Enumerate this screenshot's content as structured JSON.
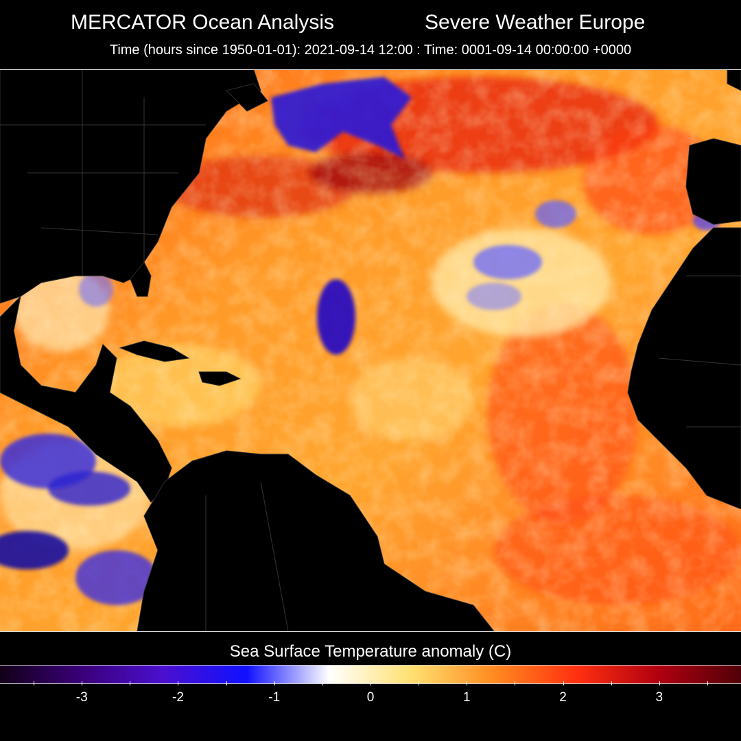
{
  "header": {
    "title_left": "MERCATOR Ocean Analysis",
    "title_right": "Severe Weather Europe",
    "subtitle": "Time (hours since 1950-01-01): 2021-09-14 12:00 : Time: 0001-09-14 00:00:00 +0000"
  },
  "colorbar": {
    "title": "Sea Surface Temperature anomaly (C)",
    "ticks": [
      {
        "label": "-3",
        "value": -3
      },
      {
        "label": "-2",
        "value": -2
      },
      {
        "label": "-1",
        "value": -1
      },
      {
        "label": "0",
        "value": 0
      },
      {
        "label": "1",
        "value": 1
      },
      {
        "label": "2",
        "value": 2
      },
      {
        "label": "3",
        "value": 3
      }
    ],
    "range": [
      -3.85,
      3.85
    ],
    "colors": [
      "#120018",
      "#3a007a",
      "#4a10d0",
      "#1010ff",
      "#ffffff",
      "#ffe070",
      "#ff8a20",
      "#ff3010",
      "#b00010",
      "#500008"
    ]
  },
  "map": {
    "region": "North Atlantic Ocean",
    "land_color": "#000000",
    "border_color": "#3a3a3a"
  }
}
